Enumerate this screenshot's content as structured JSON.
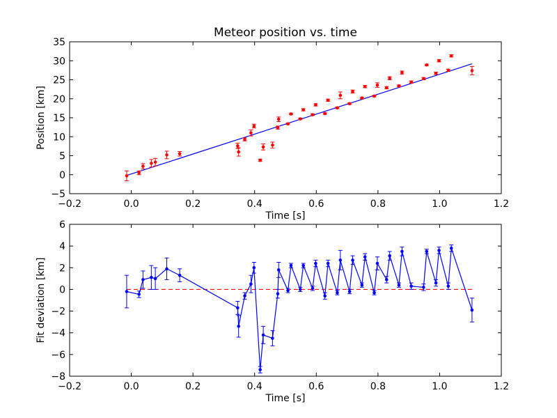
{
  "chart_data": [
    {
      "type": "scatter",
      "title": "Meteor position vs. time",
      "xlabel": "Time [s]",
      "ylabel": "Position [km]",
      "xlim": [
        -0.2,
        1.2
      ],
      "ylim": [
        -5,
        35
      ],
      "xticks": [
        "−0.2",
        "0.0",
        "0.2",
        "0.4",
        "0.6",
        "0.8",
        "1.0",
        "1.2"
      ],
      "yticks": [
        "−5",
        "0",
        "5",
        "10",
        "15",
        "20",
        "25",
        "30",
        "35"
      ],
      "grid": false,
      "colors": {
        "points": "#ff0000",
        "fit": "#0000ff"
      },
      "series": [
        {
          "kind": "errorbar-points",
          "x": [
            -0.015,
            0.025,
            0.038,
            0.065,
            0.078,
            0.115,
            0.157,
            0.345,
            0.348,
            0.368,
            0.388,
            0.398,
            0.418,
            0.428,
            0.458,
            0.475,
            0.478,
            0.508,
            0.518,
            0.548,
            0.558,
            0.588,
            0.598,
            0.628,
            0.638,
            0.668,
            0.678,
            0.708,
            0.718,
            0.748,
            0.758,
            0.788,
            0.798,
            0.828,
            0.838,
            0.868,
            0.878,
            0.908,
            0.948,
            0.958,
            0.988,
            0.998,
            1.028,
            1.038,
            1.105
          ],
          "y": [
            -0.3,
            0.5,
            2.2,
            3.0,
            3.3,
            5.2,
            5.5,
            7.6,
            6.0,
            9.3,
            11.0,
            12.8,
            3.8,
            7.3,
            7.8,
            12.4,
            14.6,
            13.4,
            16.0,
            14.7,
            17.1,
            15.8,
            18.4,
            16.1,
            19.6,
            17.6,
            20.9,
            18.7,
            21.9,
            20.2,
            23.2,
            20.7,
            23.6,
            22.9,
            25.4,
            23.4,
            26.9,
            24.4,
            25.3,
            28.9,
            26.7,
            30.0,
            27.5,
            31.3,
            27.4
          ],
          "yerr": [
            1.3,
            0.5,
            0.7,
            1.0,
            1.0,
            1.0,
            0.6,
            0.7,
            1.1,
            0.4,
            0.8,
            0.5,
            0.3,
            0.8,
            0.8,
            0.4,
            0.6,
            0.2,
            0.2,
            0.2,
            0.3,
            0.2,
            0.3,
            0.2,
            0.3,
            0.2,
            0.9,
            0.2,
            0.4,
            0.2,
            0.3,
            0.2,
            0.6,
            0.3,
            0.4,
            0.2,
            0.4,
            0.3,
            0.3,
            0.2,
            0.3,
            0.3,
            0.3,
            0.3,
            1.1
          ]
        },
        {
          "kind": "line",
          "x": [
            -0.015,
            1.105
          ],
          "y": [
            -0.2,
            29.2
          ]
        }
      ]
    },
    {
      "type": "line",
      "title": "",
      "xlabel": "Time [s]",
      "ylabel": "Fit deviation [km]",
      "xlim": [
        -0.2,
        1.2
      ],
      "ylim": [
        -8,
        6
      ],
      "xticks": [
        "−0.2",
        "0.0",
        "0.2",
        "0.4",
        "0.6",
        "0.8",
        "1.0",
        "1.2"
      ],
      "yticks": [
        "−8",
        "−6",
        "−4",
        "−2",
        "0",
        "2",
        "4",
        "6"
      ],
      "grid": false,
      "colors": {
        "line": "#0000ff",
        "zero": "#ff0000"
      },
      "series": [
        {
          "kind": "errorbar-line",
          "x": [
            -0.015,
            0.025,
            0.038,
            0.065,
            0.078,
            0.115,
            0.157,
            0.345,
            0.348,
            0.368,
            0.388,
            0.398,
            0.418,
            0.428,
            0.458,
            0.475,
            0.478,
            0.508,
            0.518,
            0.548,
            0.558,
            0.588,
            0.598,
            0.628,
            0.638,
            0.668,
            0.678,
            0.708,
            0.718,
            0.748,
            0.758,
            0.788,
            0.798,
            0.828,
            0.838,
            0.868,
            0.878,
            0.908,
            0.948,
            0.958,
            0.988,
            0.998,
            1.028,
            1.038,
            1.105
          ],
          "y": [
            -0.2,
            -0.45,
            0.9,
            1.1,
            1.0,
            1.9,
            1.3,
            -1.7,
            -3.4,
            -0.6,
            0.5,
            2.0,
            -7.4,
            -4.2,
            -4.5,
            -0.4,
            1.8,
            -0.1,
            2.2,
            0.0,
            2.2,
            0.1,
            2.4,
            -0.6,
            2.4,
            -0.3,
            2.7,
            -0.2,
            2.7,
            0.4,
            3.0,
            -0.3,
            2.4,
            0.9,
            3.1,
            0.4,
            3.5,
            0.3,
            0.2,
            3.5,
            0.6,
            3.6,
            0.3,
            3.8,
            -1.9
          ],
          "yerr": [
            1.5,
            0.3,
            0.8,
            1.1,
            1.0,
            1.0,
            0.6,
            0.6,
            1.0,
            0.3,
            0.8,
            0.5,
            0.3,
            0.8,
            0.7,
            0.4,
            0.7,
            0.2,
            0.2,
            0.2,
            0.2,
            0.2,
            0.3,
            0.3,
            0.3,
            0.2,
            0.9,
            0.2,
            0.4,
            0.2,
            0.3,
            0.2,
            0.6,
            0.3,
            0.4,
            0.2,
            0.4,
            0.3,
            0.3,
            0.2,
            0.3,
            0.3,
            0.3,
            0.3,
            1.1
          ]
        },
        {
          "kind": "dashed-zero",
          "x": [
            -0.015,
            1.105
          ],
          "y": [
            0,
            0
          ]
        }
      ]
    }
  ]
}
